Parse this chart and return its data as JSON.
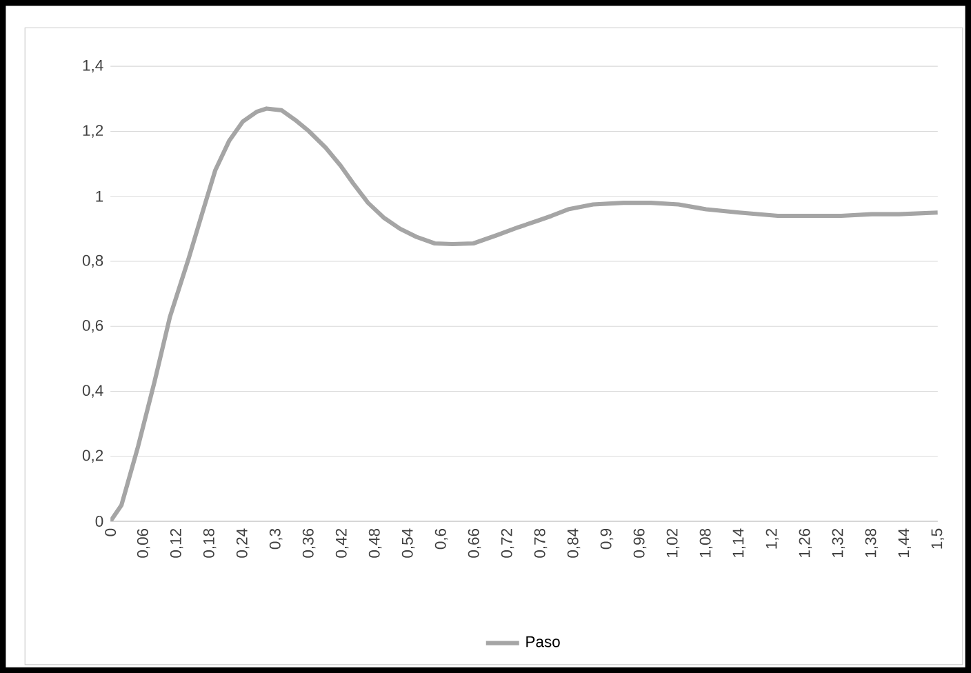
{
  "chart_data": {
    "type": "line",
    "x": [
      0,
      0.02,
      0.05,
      0.08,
      0.108,
      0.142,
      0.165,
      0.19,
      0.215,
      0.24,
      0.265,
      0.283,
      0.31,
      0.335,
      0.36,
      0.39,
      0.417,
      0.44,
      0.467,
      0.495,
      0.525,
      0.555,
      0.588,
      0.62,
      0.658,
      0.7,
      0.74,
      0.775,
      0.8,
      0.83,
      0.875,
      0.93,
      0.98,
      1.03,
      1.08,
      1.14,
      1.21,
      1.26,
      1.325,
      1.38,
      1.43,
      1.5
    ],
    "series": [
      {
        "name": "Paso",
        "color": "#a5a5a5",
        "values": [
          0,
          0.05,
          0.23,
          0.43,
          0.63,
          0.81,
          0.94,
          1.08,
          1.17,
          1.23,
          1.26,
          1.27,
          1.265,
          1.235,
          1.2,
          1.15,
          1.095,
          1.04,
          0.98,
          0.935,
          0.9,
          0.875,
          0.855,
          0.853,
          0.855,
          0.88,
          0.905,
          0.925,
          0.94,
          0.96,
          0.975,
          0.98,
          0.98,
          0.975,
          0.96,
          0.95,
          0.94,
          0.94,
          0.94,
          0.945,
          0.945,
          0.95
        ]
      }
    ],
    "xlim": [
      0,
      1.5
    ],
    "ylim": [
      0,
      1.4
    ],
    "xticks": [
      0,
      {
        "value": 0.06,
        "label": "0,06"
      },
      {
        "value": 0.12,
        "label": "0,12"
      },
      {
        "value": 0.18,
        "label": "0,18"
      },
      {
        "value": 0.24,
        "label": "0,24"
      },
      {
        "value": 0.3,
        "label": "0,3"
      },
      {
        "value": 0.36,
        "label": "0,36"
      },
      {
        "value": 0.42,
        "label": "0,42"
      },
      {
        "value": 0.48,
        "label": "0,48"
      },
      {
        "value": 0.54,
        "label": "0,54"
      },
      {
        "value": 0.6,
        "label": "0,6"
      },
      {
        "value": 0.66,
        "label": "0,66"
      },
      {
        "value": 0.72,
        "label": "0,72"
      },
      {
        "value": 0.78,
        "label": "0,78"
      },
      {
        "value": 0.84,
        "label": "0,84"
      },
      {
        "value": 0.9,
        "label": "0,9"
      },
      {
        "value": 0.96,
        "label": "0,96"
      },
      {
        "value": 1.02,
        "label": "1,02"
      },
      {
        "value": 1.08,
        "label": "1,08"
      },
      {
        "value": 1.14,
        "label": "1,14"
      },
      {
        "value": 1.2,
        "label": "1,2"
      },
      {
        "value": 1.26,
        "label": "1,26"
      },
      {
        "value": 1.32,
        "label": "1,32"
      },
      {
        "value": 1.38,
        "label": "1,38"
      },
      {
        "value": 1.44,
        "label": "1,44"
      },
      {
        "value": 1.5,
        "label": "1,5"
      }
    ],
    "yticks": [
      0,
      {
        "value": 0.2,
        "label": "0,2"
      },
      {
        "value": 0.4,
        "label": "0,4"
      },
      {
        "value": 0.6,
        "label": "0,6"
      },
      {
        "value": 0.8,
        "label": "0,8"
      },
      1,
      {
        "value": 1.2,
        "label": "1,2"
      },
      {
        "value": 1.4,
        "label": "1,4"
      }
    ],
    "grid": "y",
    "legend": "bottom",
    "marker": "none",
    "line_style": "solid"
  }
}
